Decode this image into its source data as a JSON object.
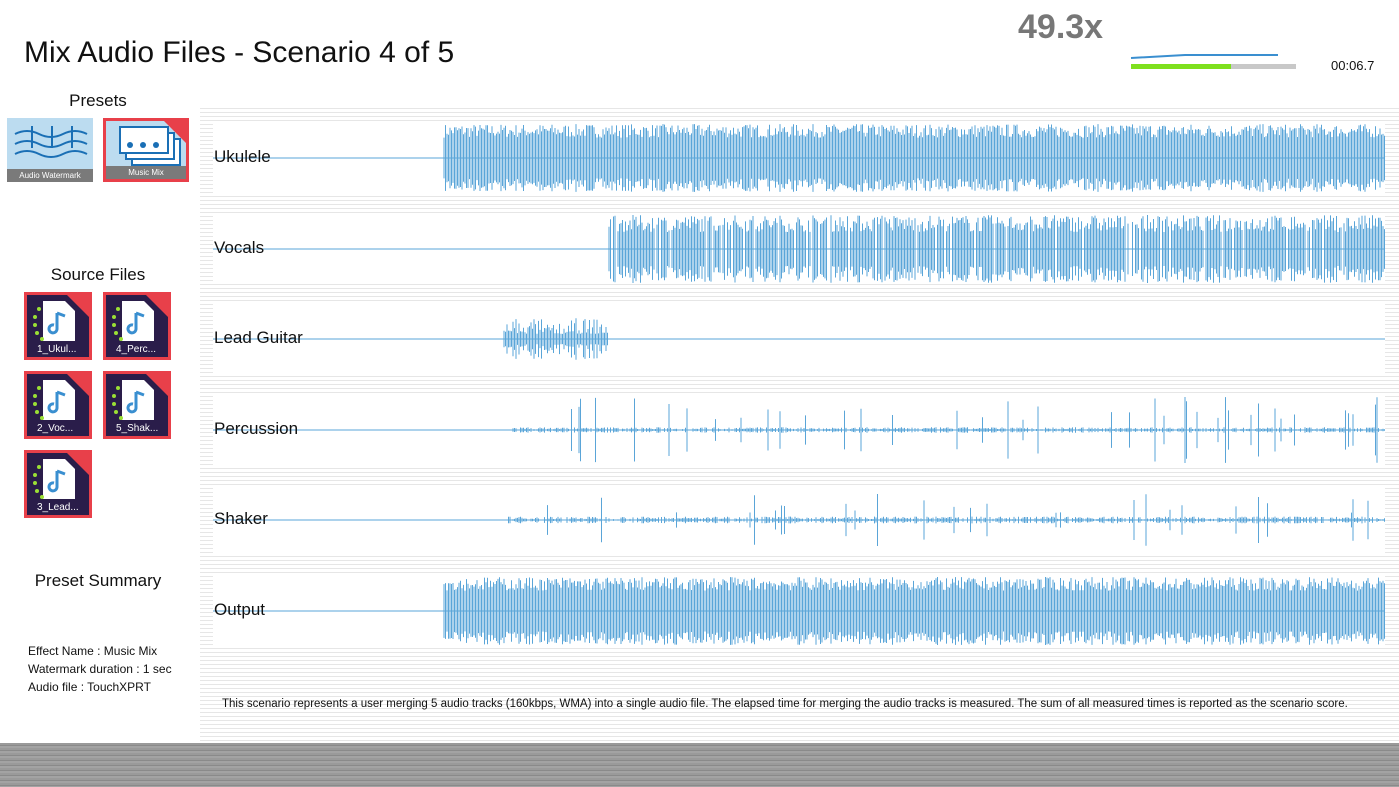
{
  "header": {
    "title": "Mix Audio Files - Scenario 4 of 5",
    "score": "49.3x",
    "timer": "00:06.7"
  },
  "presets": {
    "heading": "Presets",
    "items": [
      "Audio Watermark",
      "Music Mix"
    ]
  },
  "source_files": {
    "heading": "Source Files",
    "items": [
      "1_Ukul...",
      "4_Perc...",
      "2_Voc...",
      "5_Shak...",
      "3_Lead..."
    ]
  },
  "summary": {
    "heading": "Preset Summary",
    "lines": [
      "Effect Name : Music Mix",
      "Watermark duration : 1 sec",
      "Audio file : TouchXPRT"
    ]
  },
  "tracks": [
    "Ukulele",
    "Vocals",
    "Lead Guitar",
    "Percussion",
    "Shaker",
    "Output"
  ],
  "description": "This scenario represents a user merging 5 audio tracks (160kbps, WMA) into a single audio file. The elapsed time for merging the audio tracks is measured. The sum of all measured times is reported as the scenario score."
}
